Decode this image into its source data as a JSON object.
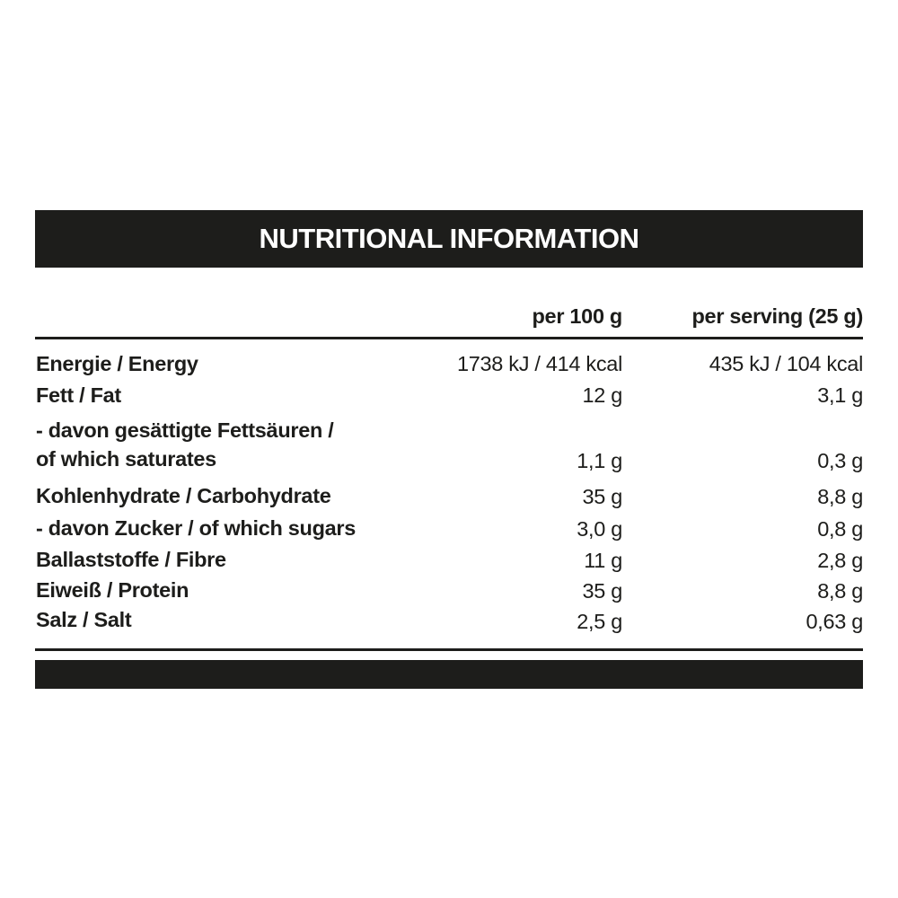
{
  "title": "NUTRITIONAL INFORMATION",
  "columns": [
    "per 100 g",
    "per serving (25 g)"
  ],
  "rows": [
    {
      "label": "Energie / Energy",
      "per100": "1738 kJ / 414 kcal",
      "serving": "435 kJ / 104 kcal"
    },
    {
      "label": "Fett / Fat",
      "per100": "12 g",
      "serving": "3,1 g"
    },
    {
      "label": "- davon gesättigte Fettsäuren /",
      "label2": "of which saturates",
      "per100": "1,1 g",
      "serving": "0,3 g"
    },
    {
      "label": "Kohlenhydrate / Carbohydrate",
      "per100": "35 g",
      "serving": "8,8 g"
    },
    {
      "label": "- davon Zucker / of which sugars",
      "per100": "3,0 g",
      "serving": "0,8 g"
    },
    {
      "label": "Ballaststoffe / Fibre",
      "per100": "11 g",
      "serving": "2,8 g"
    },
    {
      "label": "Eiweiß / Protein",
      "per100": "35 g",
      "serving": "8,8 g"
    },
    {
      "label": "Salz / Salt",
      "per100": "2,5 g",
      "serving": "0,63 g"
    }
  ],
  "colors": {
    "ink": "#1d1d1b",
    "background": "#ffffff"
  }
}
